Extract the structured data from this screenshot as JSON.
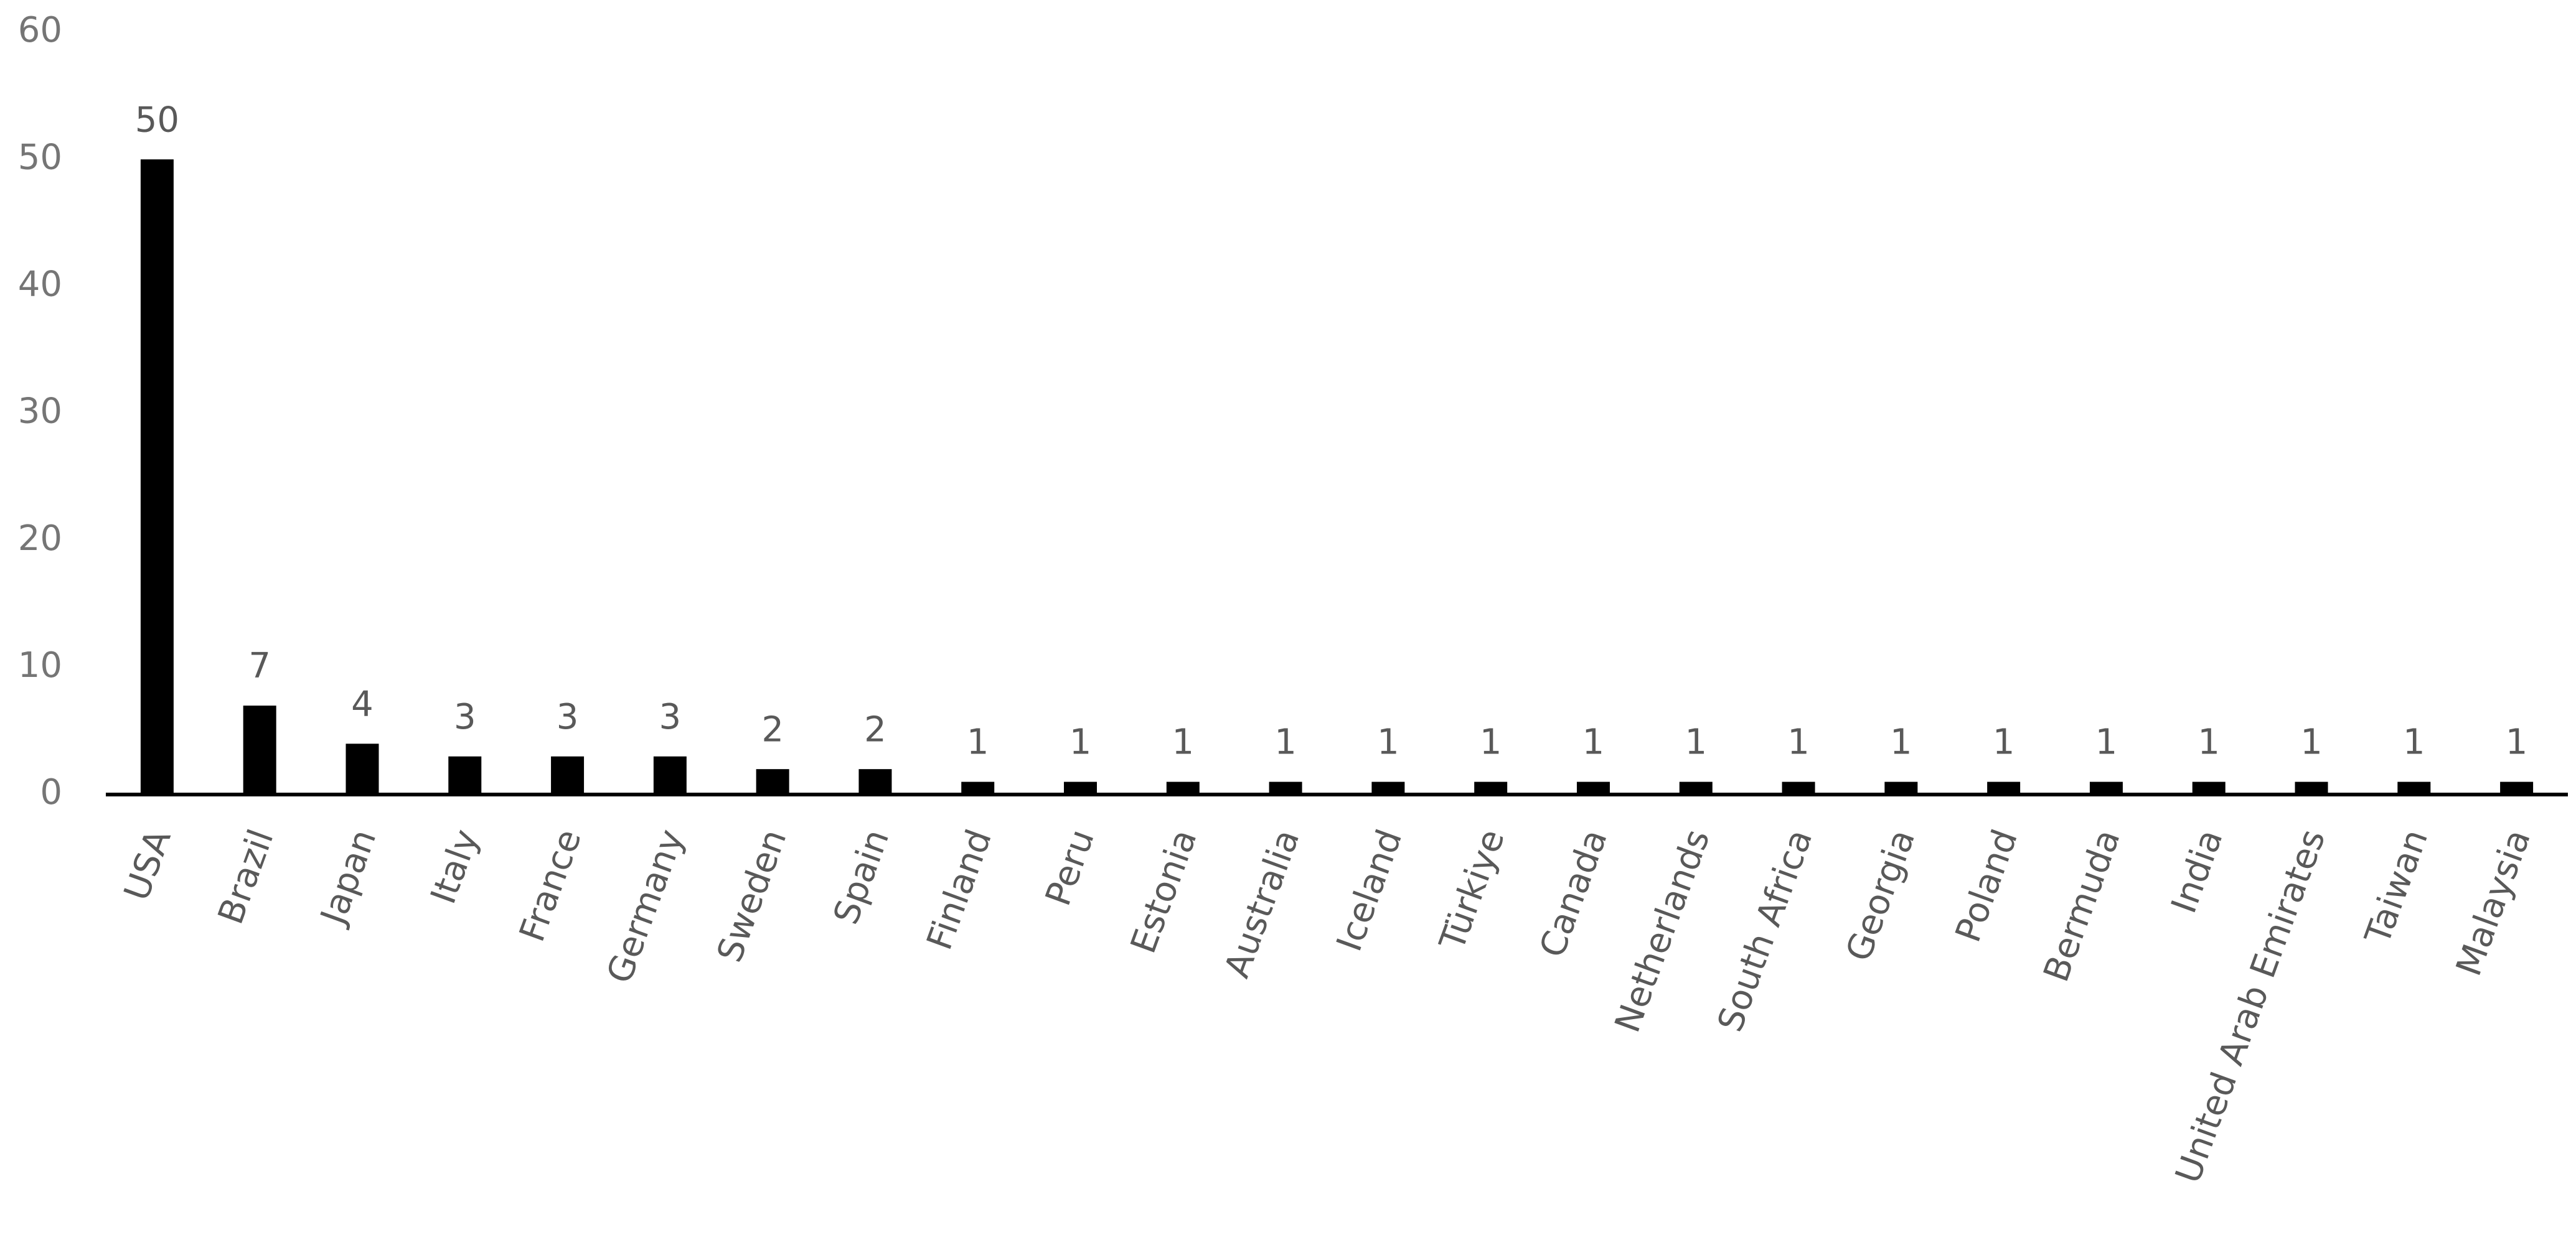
{
  "chart_data": {
    "type": "bar",
    "categories": [
      "USA",
      "Brazil",
      "Japan",
      "Italy",
      "France",
      "Germany",
      "Sweden",
      "Spain",
      "Finland",
      "Peru",
      "Estonia",
      "Australia",
      "Iceland",
      "Türkiye",
      "Canada",
      "Netherlands",
      "South Africa",
      "Georgia",
      "Poland",
      "Bermuda",
      "India",
      "United Arab Emirates",
      "Taiwan",
      "Malaysia"
    ],
    "values": [
      50,
      7,
      4,
      3,
      3,
      3,
      2,
      2,
      1,
      1,
      1,
      1,
      1,
      1,
      1,
      1,
      1,
      1,
      1,
      1,
      1,
      1,
      1,
      1
    ],
    "color": "#000000",
    "ylim": [
      0,
      60
    ],
    "yticks": [
      0,
      10,
      20,
      30,
      40,
      50,
      60
    ],
    "grid": false
  }
}
